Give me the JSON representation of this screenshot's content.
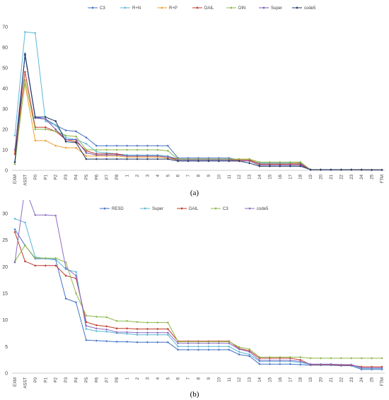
{
  "chart_data": [
    {
      "type": "line",
      "caption": "(a)",
      "ylim": [
        0,
        70
      ],
      "yticks": [
        0,
        10,
        20,
        30,
        40,
        50,
        60,
        70
      ],
      "grid": false,
      "legend_position": "top",
      "categories": [
        "EXM",
        "ASST",
        "P0",
        "P1",
        "P2",
        "P3",
        "P4",
        "P5",
        "P6",
        "P7",
        "P8",
        "1",
        "2",
        "3",
        "4",
        "5",
        "6",
        "7",
        "8",
        "9",
        "10",
        "11",
        "12",
        "13",
        "14",
        "15",
        "16",
        "17",
        "18",
        "19",
        "20",
        "21",
        "22",
        "23",
        "24",
        "25",
        "FTM"
      ],
      "series": [
        {
          "name": "C3",
          "color": "#4472c4",
          "values": [
            4,
            57,
            26,
            25,
            22,
            19.5,
            19,
            16,
            12,
            12,
            12,
            12,
            12,
            12,
            12,
            12,
            6,
            6,
            6,
            6,
            6,
            6,
            5,
            5,
            3.5,
            3.5,
            3.5,
            3.5,
            3.5,
            0.3,
            0.3,
            0.3,
            0.3,
            0.3,
            0.3,
            0.2,
            0.2
          ]
        },
        {
          "name": "R+N",
          "color": "#5bb8d8",
          "values": [
            17,
            67.5,
            67,
            24,
            22,
            16,
            15,
            13,
            9,
            8.5,
            8,
            7.5,
            7.5,
            7.5,
            7.5,
            7,
            5.5,
            5.5,
            5.5,
            5.5,
            5.5,
            5.5,
            5,
            5,
            3.5,
            3.5,
            3.5,
            3.5,
            3,
            0.3,
            0.3,
            0.3,
            0.3,
            0.3,
            0.3,
            0.2,
            0.2
          ]
        },
        {
          "name": "R+P",
          "color": "#f0a030",
          "values": [
            9,
            42,
            14.5,
            14.5,
            12,
            11,
            11,
            7,
            7,
            7,
            7,
            6.5,
            6.5,
            6.5,
            6.5,
            6,
            5,
            5,
            5,
            5,
            5,
            5,
            5.5,
            5.5,
            3,
            3,
            3,
            3,
            4,
            0.3,
            0.3,
            0.3,
            0.3,
            0.3,
            0.3,
            0.2,
            0.2
          ]
        },
        {
          "name": "DAIL",
          "color": "#c0392b",
          "values": [
            8,
            48,
            21,
            21,
            19,
            15,
            14,
            9.5,
            8,
            8,
            8,
            7,
            7,
            7,
            7,
            6.5,
            5.5,
            5.5,
            5.5,
            5.5,
            5.5,
            5.5,
            5,
            5,
            3,
            3,
            3,
            3,
            3,
            0.3,
            0.3,
            0.3,
            0.3,
            0.3,
            0.3,
            0.2,
            0.2
          ]
        },
        {
          "name": "DIN",
          "color": "#8db84a",
          "values": [
            3,
            44,
            20,
            20,
            19,
            17,
            16.5,
            10,
            10,
            10,
            10,
            10,
            10,
            10,
            10,
            9.5,
            5.5,
            5.5,
            5.5,
            5.5,
            5.5,
            5.5,
            5.5,
            5.5,
            4,
            4,
            4,
            4,
            4,
            0.3,
            0.3,
            0.3,
            0.3,
            0.3,
            0.3,
            0.2,
            0.2
          ]
        },
        {
          "name": "Super",
          "color": "#7b58b0",
          "values": [
            10,
            56,
            25.5,
            25,
            20,
            15,
            15,
            8.5,
            7.5,
            7.5,
            7.5,
            7,
            7,
            7,
            7,
            6.5,
            5,
            5,
            5,
            5,
            5,
            5,
            4.5,
            4.5,
            2.5,
            2.5,
            2.5,
            2.5,
            2.5,
            0.3,
            0.3,
            0.3,
            0.3,
            0.3,
            0.3,
            0.2,
            0.2
          ]
        },
        {
          "name": "code5",
          "color": "#1f3864",
          "values": [
            4,
            56.5,
            26,
            26,
            24,
            14,
            13.5,
            5.5,
            5.5,
            5.5,
            5.5,
            5.5,
            5.5,
            5.5,
            5.5,
            5.5,
            4.5,
            4.5,
            4.5,
            4.5,
            4.5,
            4.5,
            4.5,
            3.5,
            2,
            2,
            2,
            2,
            2,
            0.3,
            0.3,
            0.3,
            0.3,
            0.3,
            0.3,
            0.2,
            0.2
          ]
        }
      ]
    },
    {
      "type": "line",
      "caption": "(b)",
      "ylim": [
        0,
        30
      ],
      "yticks": [
        0,
        5,
        10,
        15,
        20,
        25,
        30
      ],
      "grid": false,
      "legend_position": "top",
      "categories": [
        "EXM",
        "ASST",
        "P0",
        "P1",
        "P2",
        "P3",
        "P4",
        "P5",
        "P6",
        "P7",
        "P8",
        "1",
        "2",
        "3",
        "4",
        "5",
        "6",
        "7",
        "8",
        "9",
        "10",
        "11",
        "12",
        "13",
        "14",
        "15",
        "16",
        "17",
        "18",
        "19",
        "20",
        "21",
        "22",
        "23",
        "24",
        "25",
        "FTM"
      ],
      "series": [
        {
          "name": "RESD",
          "color": "#4472c4",
          "values": [
            27,
            24,
            21.5,
            21.5,
            21.3,
            14,
            13.3,
            6.2,
            6.1,
            6,
            5.9,
            5.9,
            5.8,
            5.8,
            5.8,
            5.8,
            4.4,
            4.4,
            4.4,
            4.4,
            4.4,
            4.4,
            3.5,
            3.2,
            1.7,
            1.7,
            1.7,
            1.7,
            1.6,
            1.5,
            1.5,
            1.5,
            1.4,
            1.4,
            0.7,
            0.7,
            0.7
          ]
        },
        {
          "name": "Super",
          "color": "#5bb8d8",
          "values": [
            29,
            28.3,
            21.8,
            21.5,
            21.4,
            19.5,
            19,
            8.3,
            7.9,
            7.8,
            7.5,
            7.4,
            7.2,
            7.2,
            7.2,
            7.2,
            5,
            5,
            5,
            5,
            5,
            5,
            4,
            3.5,
            2.2,
            2.2,
            2.2,
            2.2,
            2,
            1.6,
            1.6,
            1.6,
            1.5,
            1.5,
            0.9,
            0.9,
            0.9
          ]
        },
        {
          "name": "DAIL",
          "color": "#c0392b",
          "values": [
            26.5,
            21,
            20.2,
            20.2,
            20.2,
            18.3,
            17.8,
            9.6,
            9,
            8.8,
            8.4,
            8.4,
            8.3,
            8.3,
            8.3,
            8.3,
            6,
            6,
            6,
            6,
            6,
            6,
            4.6,
            4.2,
            2.8,
            2.8,
            2.8,
            2.8,
            2.5,
            1.6,
            1.6,
            1.6,
            1.5,
            1.5,
            1.2,
            1.2,
            1.2
          ]
        },
        {
          "name": "C3",
          "color": "#8db84a",
          "values": [
            21,
            24,
            21.6,
            21.6,
            21.6,
            20.8,
            15,
            10.8,
            10.6,
            10.5,
            9.8,
            9.8,
            9.6,
            9.5,
            9.5,
            9.5,
            5.9,
            5.9,
            5.9,
            5.9,
            5.9,
            5.9,
            4.9,
            4.5,
            3,
            3,
            3,
            3,
            3,
            2.8,
            2.8,
            2.8,
            2.8,
            2.8,
            2.8,
            2.8,
            2.8
          ]
        },
        {
          "name": "code5",
          "color": "#8e6cc4",
          "values": [
            20.8,
            34.8,
            29.7,
            29.7,
            29.6,
            19.8,
            18.3,
            8.9,
            8.4,
            8.2,
            7.7,
            7.7,
            7.6,
            7.6,
            7.6,
            7.6,
            5.6,
            5.6,
            5.6,
            5.6,
            5.6,
            5.6,
            4.5,
            4,
            2.4,
            2.4,
            2.4,
            2.4,
            2.2,
            1.7,
            1.7,
            1.7,
            1.6,
            1.6,
            1,
            1,
            1
          ]
        }
      ]
    }
  ]
}
